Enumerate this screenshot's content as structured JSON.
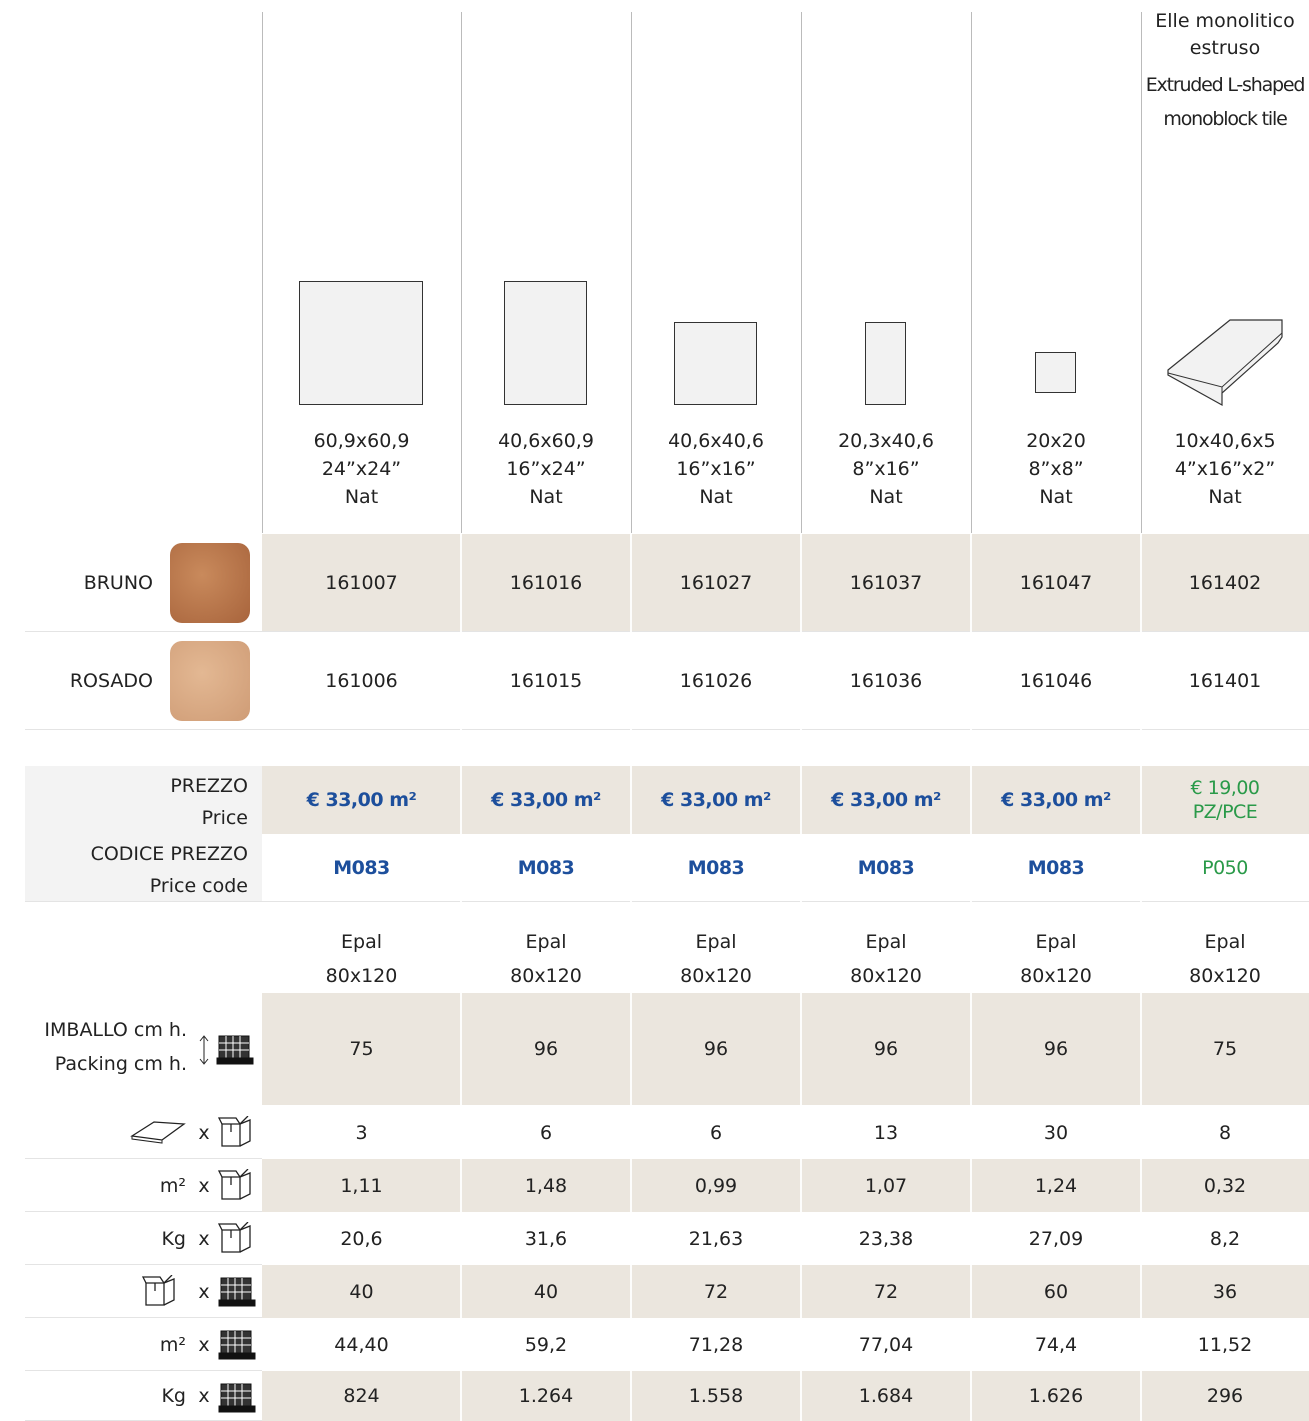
{
  "header": {
    "special_title_it": "Elle monolitico estruso",
    "special_title_en": "Extruded L-shaped monoblock tile"
  },
  "formats": [
    {
      "size": "60,9x60,9",
      "inches": "24”x24”",
      "finish": "Nat"
    },
    {
      "size": "40,6x60,9",
      "inches": "16”x24”",
      "finish": "Nat"
    },
    {
      "size": "40,6x40,6",
      "inches": "16”x16”",
      "finish": "Nat"
    },
    {
      "size": "20,3x40,6",
      "inches": "8”x16”",
      "finish": "Nat"
    },
    {
      "size": "20x20",
      "inches": "8”x8”",
      "finish": "Nat"
    },
    {
      "size": "10x40,6x5",
      "inches": "4”x16”x2”",
      "finish": "Nat"
    }
  ],
  "colors": [
    {
      "name": "BRUNO",
      "codes": [
        "161007",
        "161016",
        "161027",
        "161037",
        "161047",
        "161402"
      ]
    },
    {
      "name": "ROSADO",
      "codes": [
        "161006",
        "161015",
        "161026",
        "161036",
        "161046",
        "161401"
      ]
    }
  ],
  "price": {
    "label": "PREZZO",
    "label_en": "Price",
    "values": [
      "€ 33,00 m²",
      "€ 33,00 m²",
      "€ 33,00 m²",
      "€ 33,00 m²",
      "€ 33,00 m²",
      "€ 19,00 PZ/PCE"
    ]
  },
  "price_code": {
    "label": "CODICE PREZZO",
    "label_en": "Price code",
    "values": [
      "M083",
      "M083",
      "M083",
      "M083",
      "M083",
      "P050"
    ]
  },
  "pallet": {
    "values": [
      {
        "type": "Epal",
        "size": "80x120"
      },
      {
        "type": "Epal",
        "size": "80x120"
      },
      {
        "type": "Epal",
        "size": "80x120"
      },
      {
        "type": "Epal",
        "size": "80x120"
      },
      {
        "type": "Epal",
        "size": "80x120"
      },
      {
        "type": "Epal",
        "size": "80x120"
      }
    ]
  },
  "packing": {
    "label": "IMBALLO cm h.",
    "label_en": "Packing cm h.",
    "values": [
      "75",
      "96",
      "96",
      "96",
      "96",
      "75"
    ]
  },
  "rows": [
    {
      "x": "x",
      "values": [
        "3",
        "6",
        "6",
        "13",
        "30",
        "8"
      ]
    },
    {
      "unit": "m²",
      "x": "x",
      "values": [
        "1,11",
        "1,48",
        "0,99",
        "1,07",
        "1,24",
        "0,32"
      ]
    },
    {
      "unit": "Kg",
      "x": "x",
      "values": [
        "20,6",
        "31,6",
        "21,63",
        "23,38",
        "27,09",
        "8,2"
      ]
    },
    {
      "x": "x",
      "values": [
        "40",
        "40",
        "72",
        "72",
        "60",
        "36"
      ]
    },
    {
      "unit": "m²",
      "x": "x",
      "values": [
        "44,40",
        "59,2",
        "71,28",
        "77,04",
        "74,4",
        "11,52"
      ]
    },
    {
      "unit": "Kg",
      "x": "x",
      "values": [
        "824",
        "1.264",
        "1.558",
        "1.684",
        "1.626",
        "296"
      ]
    }
  ]
}
